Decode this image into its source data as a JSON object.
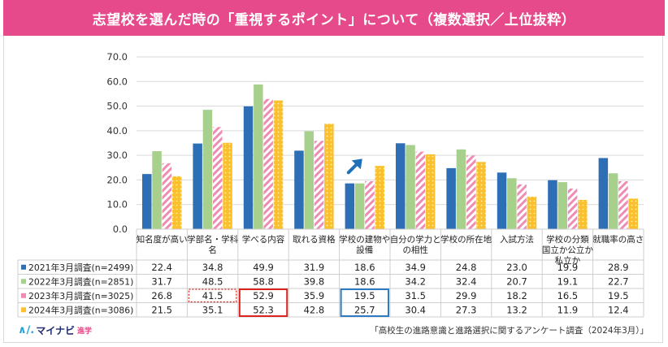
{
  "title": "志望校を選んだ時の「重視するポイント」について（複数選択／上位抜粋）",
  "source": "「高校生の進路意識と進路選択に関するアンケート調査（2024年3月）」",
  "logo": {
    "mark": "∧∕.",
    "name": "マイナビ",
    "suffix": "進学"
  },
  "colors": {
    "s2021": "#2e6eb5",
    "s2022": "#a8d08d",
    "s2023": "#f08cb4",
    "s2024": "#fbc02d",
    "highlight_red": "#d9231c",
    "highlight_blue": "#2e7bc4",
    "arrow": "#1f6fb9"
  },
  "chart_data": {
    "type": "bar",
    "title": "",
    "xlabel": "",
    "ylabel": "",
    "ylim": [
      0,
      70
    ],
    "yticks": [
      "0.0",
      "10.0",
      "20.0",
      "30.0",
      "40.0",
      "50.0",
      "60.0",
      "70.0"
    ],
    "grid": true,
    "categories": [
      [
        "知名度が高い"
      ],
      [
        "学部名・学科",
        "名"
      ],
      [
        "学べる内容"
      ],
      [
        "取れる資格"
      ],
      [
        "学校の建物や",
        "設備"
      ],
      [
        "自分の学力と",
        "の相性"
      ],
      [
        "学校の所在地"
      ],
      [
        "入試方法"
      ],
      [
        "学校の分類",
        "国立か公立か",
        "私立か"
      ],
      [
        "就職率の高さ"
      ]
    ],
    "series": [
      {
        "name": "2021年3月調査(n=2499)",
        "pattern": "solid",
        "values": [
          22.4,
          34.8,
          49.9,
          31.9,
          18.6,
          34.9,
          24.8,
          23.0,
          19.9,
          28.9
        ]
      },
      {
        "name": "2022年3月調査(n=2851)",
        "pattern": "solid",
        "values": [
          31.7,
          48.5,
          58.8,
          39.8,
          18.6,
          34.2,
          32.4,
          20.7,
          19.1,
          22.7
        ]
      },
      {
        "name": "2023年3月調査(n=3025)",
        "pattern": "stripes",
        "values": [
          26.8,
          41.5,
          52.9,
          35.9,
          19.5,
          31.5,
          29.9,
          18.2,
          16.5,
          19.5
        ]
      },
      {
        "name": "2024年3月調査(n=3086)",
        "pattern": "dots",
        "values": [
          21.5,
          35.1,
          52.3,
          42.8,
          25.7,
          30.4,
          27.3,
          13.2,
          11.9,
          12.4
        ]
      }
    ],
    "value_labels": [
      [
        "22.4",
        "34.8",
        "49.9",
        "31.9",
        "18.6",
        "34.9",
        "24.8",
        "23.0",
        "19.9",
        "28.9"
      ],
      [
        "31.7",
        "48.5",
        "58.8",
        "39.8",
        "18.6",
        "34.2",
        "32.4",
        "20.7",
        "19.1",
        "22.7"
      ],
      [
        "26.8",
        "41.5",
        "52.9",
        "35.9",
        "19.5",
        "31.5",
        "29.9",
        "18.2",
        "16.5",
        "19.5"
      ],
      [
        "21.5",
        "35.1",
        "52.3",
        "42.8",
        "25.7",
        "30.4",
        "27.3",
        "13.2",
        "11.9",
        "12.4"
      ]
    ],
    "highlights": [
      {
        "category": 1,
        "series": [
          2
        ],
        "style": "dotted-red"
      },
      {
        "category": 2,
        "series": [
          2,
          3
        ],
        "style": "solid-red"
      },
      {
        "category": 4,
        "series": [
          2,
          3
        ],
        "style": "solid-blue"
      }
    ],
    "arrow_on_category": 4
  }
}
